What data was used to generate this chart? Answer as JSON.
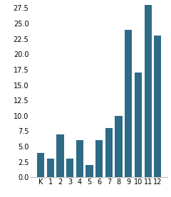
{
  "categories": [
    "K",
    "1",
    "2",
    "3",
    "4",
    "5",
    "6",
    "7",
    "8",
    "9",
    "10",
    "11",
    "12"
  ],
  "values": [
    4,
    3,
    7,
    3,
    6,
    2,
    6,
    8,
    10,
    24,
    17,
    28,
    23
  ],
  "bar_color": "#2e6b87",
  "ylim": [
    0,
    28.5
  ],
  "yticks": [
    0,
    2.5,
    5,
    7.5,
    10,
    12.5,
    15,
    17.5,
    20,
    22.5,
    25,
    27.5
  ],
  "background_color": "#ffffff",
  "bar_width": 0.75,
  "tick_fontsize": 7,
  "xlabel_fontsize": 7
}
